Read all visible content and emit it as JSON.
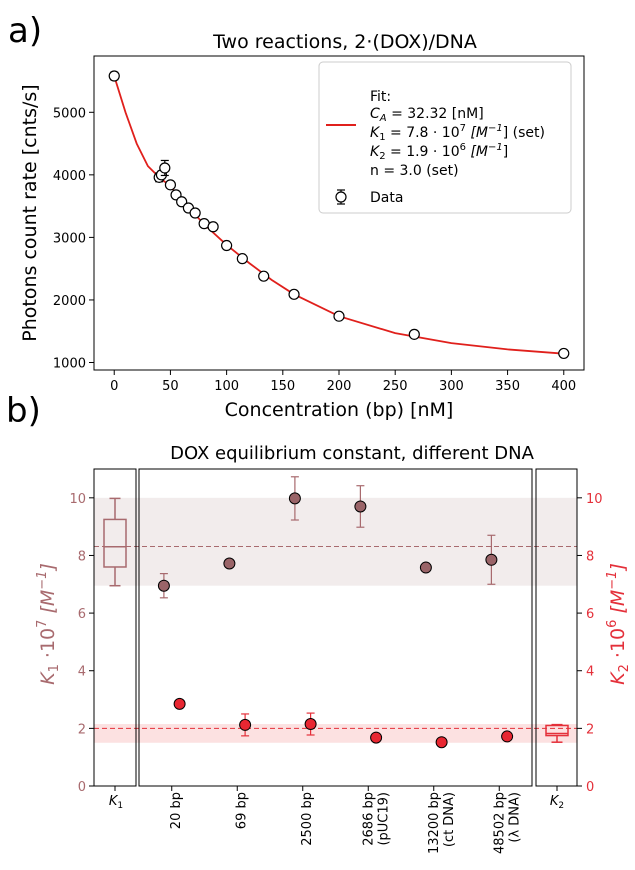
{
  "chart_data": [
    {
      "type": "scatter",
      "panel_label": "a)",
      "title": "Two reactions, 2·(DOX)/DNA",
      "xlabel": "Concentration (bp) [nM]",
      "ylabel": "Photons count rate [cnts/s]",
      "xlim": [
        -18,
        418
      ],
      "ylim": [
        880,
        5900
      ],
      "xticks": [
        0,
        50,
        100,
        150,
        200,
        250,
        300,
        350,
        400
      ],
      "yticks": [
        1000,
        2000,
        3000,
        4000,
        5000
      ],
      "legend": {
        "position": "top-right",
        "fit_label": "Fit:",
        "fit_lines": [
          {
            "pre": "C",
            "sub": "A",
            "post": " = 32.32 [nM]"
          },
          {
            "pre": "K",
            "sub": "1",
            "post": " = 7.8 · 10",
            "sup": "7",
            "post2": " [M",
            "sup2": "−1",
            "post3": "] (set)"
          },
          {
            "pre": "K",
            "sub": "2",
            "post": " = 1.9 · 10",
            "sup": "6",
            "post2": " [M",
            "sup2": "−1",
            "post3": "]"
          },
          {
            "pre": "n = 3.0 (set)"
          }
        ],
        "data_label": "Data"
      },
      "fit_color": "#e0201c",
      "data": {
        "x": [
          0,
          40,
          42,
          45,
          50,
          55,
          60,
          66,
          72,
          80,
          88,
          100,
          114,
          133,
          160,
          200,
          267,
          400
        ],
        "y": [
          5580,
          3960,
          4000,
          4110,
          3840,
          3680,
          3570,
          3470,
          3390,
          3220,
          3170,
          2870,
          2660,
          2380,
          2090,
          1740,
          1450,
          1145
        ],
        "err": [
          60,
          70,
          60,
          120,
          50,
          50,
          50,
          50,
          50,
          40,
          40,
          40,
          40,
          40,
          40,
          30,
          30,
          30
        ]
      },
      "fit_curve": {
        "x": [
          0,
          10,
          20,
          30,
          40,
          50,
          60,
          80,
          100,
          120,
          140,
          160,
          200,
          250,
          300,
          350,
          400
        ],
        "y": [
          5580,
          5000,
          4500,
          4140,
          3960,
          3820,
          3600,
          3210,
          2880,
          2590,
          2320,
          2090,
          1740,
          1470,
          1310,
          1210,
          1140
        ]
      }
    },
    {
      "type": "scatter",
      "panel_label": "b)",
      "title": "DOX equilibrium constant, different DNA",
      "ylabel_left": {
        "pre": "K",
        "sub": "1",
        "post": " ·10",
        "sup": "7",
        "post2": " [M",
        "sup2": "−1",
        "post3": "]"
      },
      "ylabel_right": {
        "pre": "K",
        "sub": "2",
        "post": " ·10",
        "sup": "6",
        "post2": " [M",
        "sup2": "−1",
        "post3": "]"
      },
      "ylim": [
        0,
        11
      ],
      "yticks": [
        0,
        2,
        4,
        6,
        8,
        10
      ],
      "left_color": "#a86a6e",
      "right_color": "#e4303a",
      "k1_marker_color": "#9a6468",
      "k2_marker_color": "#e82732",
      "categories": [
        {
          "line1": "20 bp",
          "line2": ""
        },
        {
          "line1": "69 bp",
          "line2": ""
        },
        {
          "line1": "2500 bp",
          "line2": ""
        },
        {
          "line1": "2686 bp",
          "line2": "(pUC19)"
        },
        {
          "line1": "13200 bp",
          "line2": "(ct DNA)"
        },
        {
          "line1": "48502 bp",
          "line2": "(λ DNA)"
        }
      ],
      "series": [
        {
          "name": "K1",
          "values": [
            6.95,
            7.72,
            9.98,
            9.7,
            7.58,
            7.85
          ],
          "errors": [
            0.42,
            0,
            0.75,
            0.72,
            0,
            0.85
          ]
        },
        {
          "name": "K2",
          "values": [
            2.85,
            2.12,
            2.15,
            1.68,
            1.52,
            1.72
          ],
          "errors": [
            0,
            0.38,
            0.38,
            0,
            0,
            0
          ]
        }
      ],
      "k1_summary": {
        "label": "K",
        "label_sub": "1",
        "mean": 8.31,
        "band": [
          6.95,
          10.0
        ],
        "box_q1": 7.6,
        "box_q3": 9.25,
        "box_median": 8.3,
        "whisker_low": 6.95,
        "whisker_high": 9.98
      },
      "k2_summary": {
        "label": "K",
        "label_sub": "2",
        "mean": 2.0,
        "band": [
          1.5,
          2.15
        ],
        "box_q1": 1.75,
        "box_q3": 2.1,
        "box_median": 1.82,
        "whisker_low": 1.52,
        "whisker_high": 2.13
      }
    }
  ]
}
